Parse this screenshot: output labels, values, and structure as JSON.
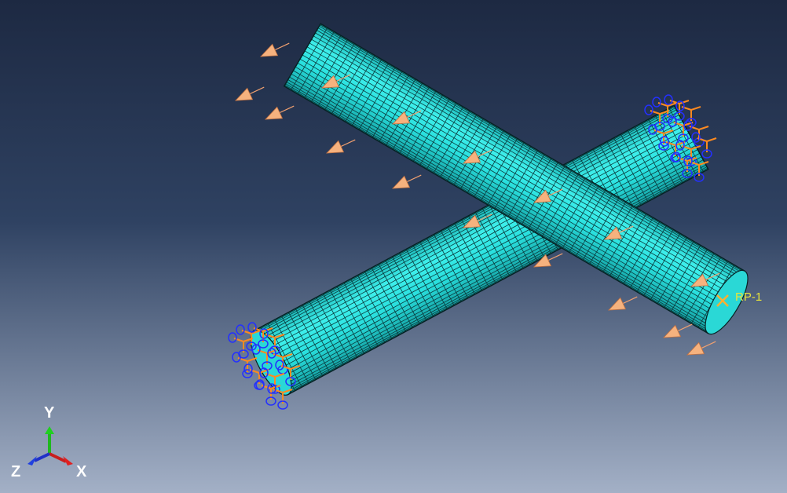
{
  "viewport": {
    "reference_point": "RP-1",
    "triad": {
      "y": "Y",
      "z": "Z",
      "x": "X"
    }
  }
}
